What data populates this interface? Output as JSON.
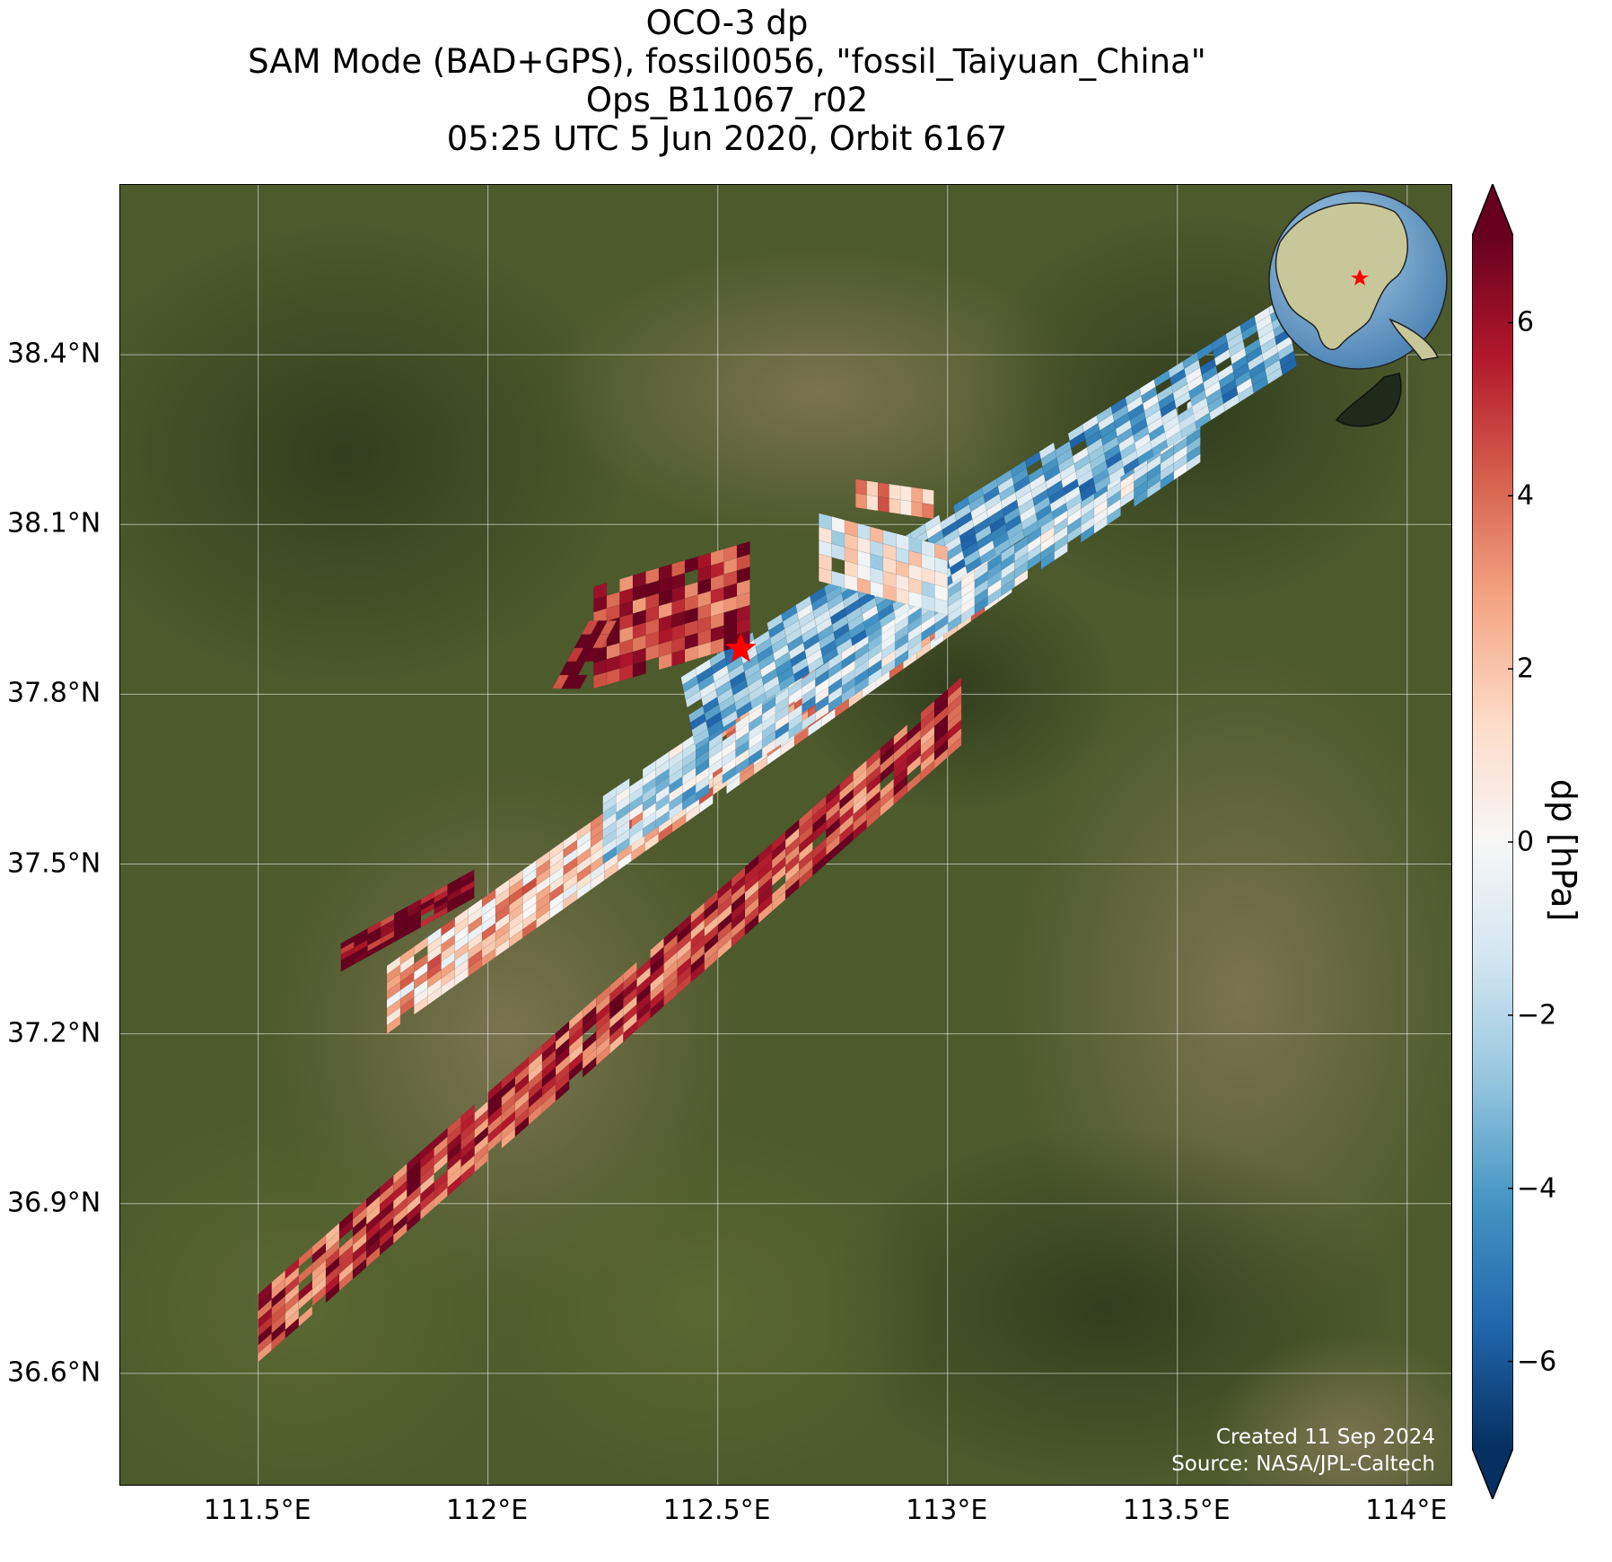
{
  "title": {
    "line1": "OCO-3 dp",
    "line2": "SAM Mode (BAD+GPS), fossil0056, \"fossil_Taiyuan_China\"",
    "line3": "Ops_B11067_r02",
    "line4": "05:25 UTC 5 Jun 2020, Orbit 6167"
  },
  "map": {
    "lon_range": [
      111.2,
      114.1
    ],
    "lat_range": [
      36.4,
      38.7
    ],
    "x_ticks": [
      {
        "value": 111.5,
        "label": "111.5°E"
      },
      {
        "value": 112.0,
        "label": "112°E"
      },
      {
        "value": 112.5,
        "label": "112.5°E"
      },
      {
        "value": 113.0,
        "label": "113°E"
      },
      {
        "value": 113.5,
        "label": "113.5°E"
      },
      {
        "value": 114.0,
        "label": "114°E"
      }
    ],
    "y_ticks": [
      {
        "value": 38.4,
        "label": "38.4°N"
      },
      {
        "value": 38.1,
        "label": "38.1°N"
      },
      {
        "value": 37.8,
        "label": "37.8°N"
      },
      {
        "value": 37.5,
        "label": "37.5°N"
      },
      {
        "value": 37.2,
        "label": "37.2°N"
      },
      {
        "value": 36.9,
        "label": "36.9°N"
      },
      {
        "value": 36.6,
        "label": "36.6°N"
      }
    ],
    "gridlines": true,
    "background": "satellite-imagery-terrain",
    "target": {
      "lon": 112.55,
      "lat": 37.88,
      "marker": "red-star-icon",
      "color": "#ff0000"
    },
    "inset_globe": {
      "placement": "top-right",
      "center": "east-asia",
      "marker": "red-star-icon"
    },
    "swaths": [
      {
        "start": [
          111.5,
          36.74
        ],
        "end": [
          113.03,
          37.83
        ],
        "cross": [
          0.0,
          -0.12
        ],
        "along_cells": 52,
        "cross_cells": 8,
        "mean_dp": 5.0
      },
      {
        "start": [
          111.78,
          37.32
        ],
        "end": [
          113.14,
          38.1
        ],
        "cross": [
          0.0,
          -0.12
        ],
        "along_cells": 46,
        "cross_cells": 8,
        "mean_dp": 2.0
      },
      {
        "start": [
          112.25,
          37.62
        ],
        "end": [
          113.55,
          38.33
        ],
        "cross": [
          0.0,
          -0.12
        ],
        "along_cells": 45,
        "cross_cells": 8,
        "mean_dp": -2.0
      },
      {
        "start": [
          112.42,
          37.83
        ],
        "end": [
          113.73,
          38.5
        ],
        "cross": [
          0.03,
          -0.12
        ],
        "along_cells": 42,
        "cross_cells": 9,
        "mean_dp": -3.0
      },
      {
        "start": [
          112.23,
          37.99
        ],
        "end": [
          112.57,
          38.07
        ],
        "cross": [
          0.0,
          -0.18
        ],
        "along_cells": 12,
        "cross_cells": 8,
        "mean_dp": 5.5
      },
      {
        "start": [
          112.72,
          38.12
        ],
        "end": [
          113.0,
          38.06
        ],
        "cross": [
          0.0,
          -0.12
        ],
        "along_cells": 10,
        "cross_cells": 5,
        "mean_dp": 0.0
      },
      {
        "start": [
          112.8,
          38.18
        ],
        "end": [
          112.97,
          38.16
        ],
        "cross": [
          0.0,
          -0.05
        ],
        "along_cells": 7,
        "cross_cells": 2,
        "mean_dp": 2.0
      },
      {
        "start": [
          111.68,
          37.31
        ],
        "end": [
          111.97,
          37.44
        ],
        "cross": [
          0.0,
          0.05
        ],
        "along_cells": 10,
        "cross_cells": 5,
        "mean_dp": 7.0
      },
      {
        "start": [
          112.14,
          37.81
        ],
        "end": [
          112.22,
          37.93
        ],
        "cross": [
          0.06,
          0.0
        ],
        "along_cells": 5,
        "cross_cells": 3,
        "mean_dp": 7.0
      }
    ],
    "credit": {
      "created": "Created 11 Sep 2024",
      "source": "Source: NASA/JPL-Caltech"
    }
  },
  "colorbar": {
    "label": "dp [hPa]",
    "range": [
      -7,
      7
    ],
    "extend": "both",
    "cmap": "RdBu_r",
    "stops": [
      "#053061",
      "#2166ac",
      "#4393c3",
      "#92c5de",
      "#d1e5f0",
      "#f7f7f7",
      "#fddbc7",
      "#f4a582",
      "#d6604d",
      "#b2182b",
      "#67001f"
    ],
    "ticks": [
      {
        "value": 6,
        "label": "6"
      },
      {
        "value": 4,
        "label": "4"
      },
      {
        "value": 2,
        "label": "2"
      },
      {
        "value": 0,
        "label": "0"
      },
      {
        "value": -2,
        "label": "−2"
      },
      {
        "value": -4,
        "label": "−4"
      },
      {
        "value": -6,
        "label": "−6"
      }
    ]
  }
}
